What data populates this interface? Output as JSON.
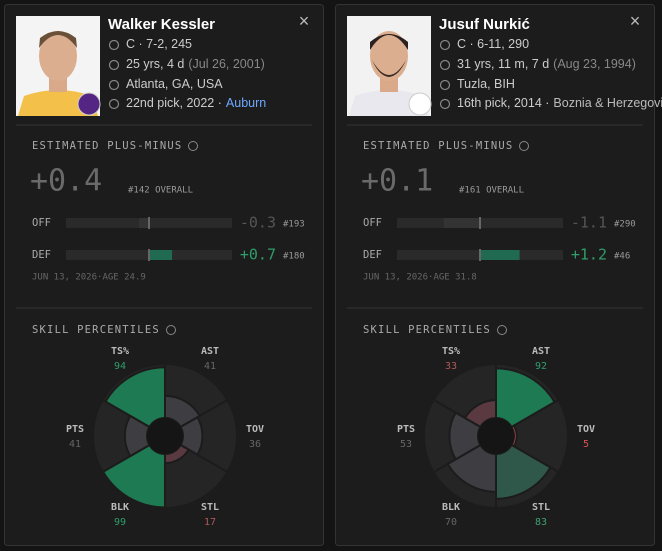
{
  "cards": [
    {
      "name": "Walker Kessler",
      "position": "C · 7-2, 245",
      "age": "25 yrs, 4 d",
      "birth": "(Jul 26, 2001)",
      "hometown": "Atlanta, GA, USA",
      "draft": "22nd pick, 2022 ·",
      "school": "Auburn",
      "school_color": "#6ea8fe",
      "epm_title": "ESTIMATED PLUS-MINUS",
      "epm": "+0.4",
      "rank": "#142 OVERALL",
      "off": {
        "label": "OFF",
        "value": {
          "value": -0.3,
          "label": "-0.3"
        },
        "rank": "#193"
      },
      "def": {
        "label": "DEF",
        "value": {
          "value": 0.7,
          "label": "+0.7"
        },
        "rank": "#180"
      },
      "date": "JUN 13, 2026·AGE 24.9",
      "skills_title": "SKILL PERCENTILES",
      "skills": [
        {
          "label": "TS%",
          "value": 94
        },
        {
          "label": "AST",
          "value": 41
        },
        {
          "label": "TOV",
          "value": 36
        },
        {
          "label": "STL",
          "value": 17
        },
        {
          "label": "BLK",
          "value": 99
        },
        {
          "label": "PTS",
          "value": 41
        }
      ]
    },
    {
      "name": "Jusuf Nurkić",
      "position": "C · 6-11, 290",
      "age": "31 yrs, 11 m, 7 d",
      "birth": "(Aug 23, 1994)",
      "hometown": "Tuzla, BIH",
      "draft": "16th pick, 2014 ·",
      "school": "Boznia & Herzegovi",
      "school_color": "#bbbbbb",
      "epm_title": "ESTIMATED PLUS-MINUS",
      "epm": "+0.1",
      "rank": "#161 OVERALL",
      "off": {
        "label": "OFF",
        "value": {
          "value": -1.1,
          "label": "-1.1"
        },
        "rank": "#290"
      },
      "def": {
        "label": "DEF",
        "value": {
          "value": 1.2,
          "label": "+1.2"
        },
        "rank": "#46"
      },
      "date": "JUN 13, 2026·AGE 31.8",
      "skills_title": "SKILL PERCENTILES",
      "skills": [
        {
          "label": "TS%",
          "value": 33
        },
        {
          "label": "AST",
          "value": 92
        },
        {
          "label": "TOV",
          "value": 5
        },
        {
          "label": "STL",
          "value": 83
        },
        {
          "label": "BLK",
          "value": 70
        },
        {
          "label": "PTS",
          "value": 53
        }
      ]
    }
  ]
}
